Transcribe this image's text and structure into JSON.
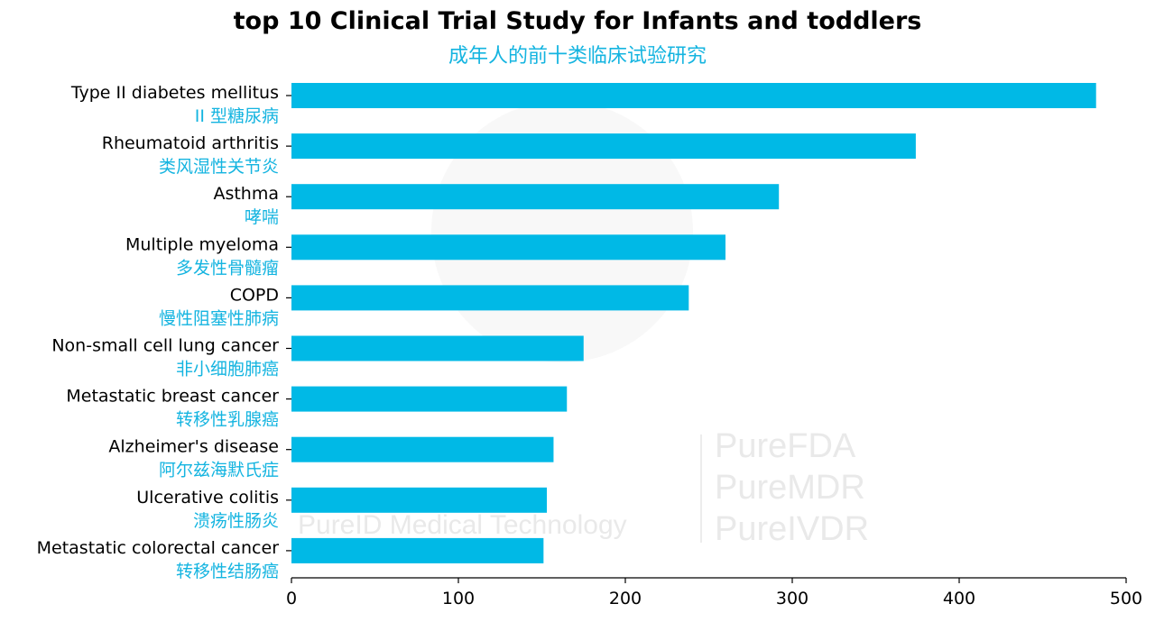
{
  "chart_data": {
    "type": "bar",
    "orientation": "horizontal",
    "title": "top 10 Clinical Trial Study for Infants and toddlers",
    "subtitle": "成年人的前十类临床试验研究",
    "categories": [
      {
        "en": "Type II diabetes mellitus",
        "zh": "II 型糖尿病"
      },
      {
        "en": "Rheumatoid arthritis",
        "zh": "类风湿性关节炎"
      },
      {
        "en": "Asthma",
        "zh": "哮喘"
      },
      {
        "en": "Multiple myeloma",
        "zh": "多发性骨髓瘤"
      },
      {
        "en": "COPD",
        "zh": "慢性阻塞性肺病"
      },
      {
        "en": "Non-small cell lung cancer",
        "zh": "非小细胞肺癌"
      },
      {
        "en": "Metastatic breast cancer",
        "zh": "转移性乳腺癌"
      },
      {
        "en": "Alzheimer's disease",
        "zh": "阿尔兹海默氏症"
      },
      {
        "en": "Ulcerative colitis",
        "zh": "溃疡性肠炎"
      },
      {
        "en": "Metastatic colorectal cancer",
        "zh": "转移性结肠癌"
      }
    ],
    "values": [
      482,
      374,
      292,
      260,
      238,
      175,
      165,
      157,
      153,
      151
    ],
    "xlim": [
      0,
      500
    ],
    "xticks": [
      0,
      100,
      200,
      300,
      400,
      500
    ],
    "grid": false,
    "bar_color": "#00b9e6",
    "label_zh_color": "#14b4e0"
  },
  "watermark": {
    "brand_lines": [
      "PureFDA",
      "PureMDR",
      "PureIVDR"
    ],
    "company": "PureID Medical Technology"
  }
}
